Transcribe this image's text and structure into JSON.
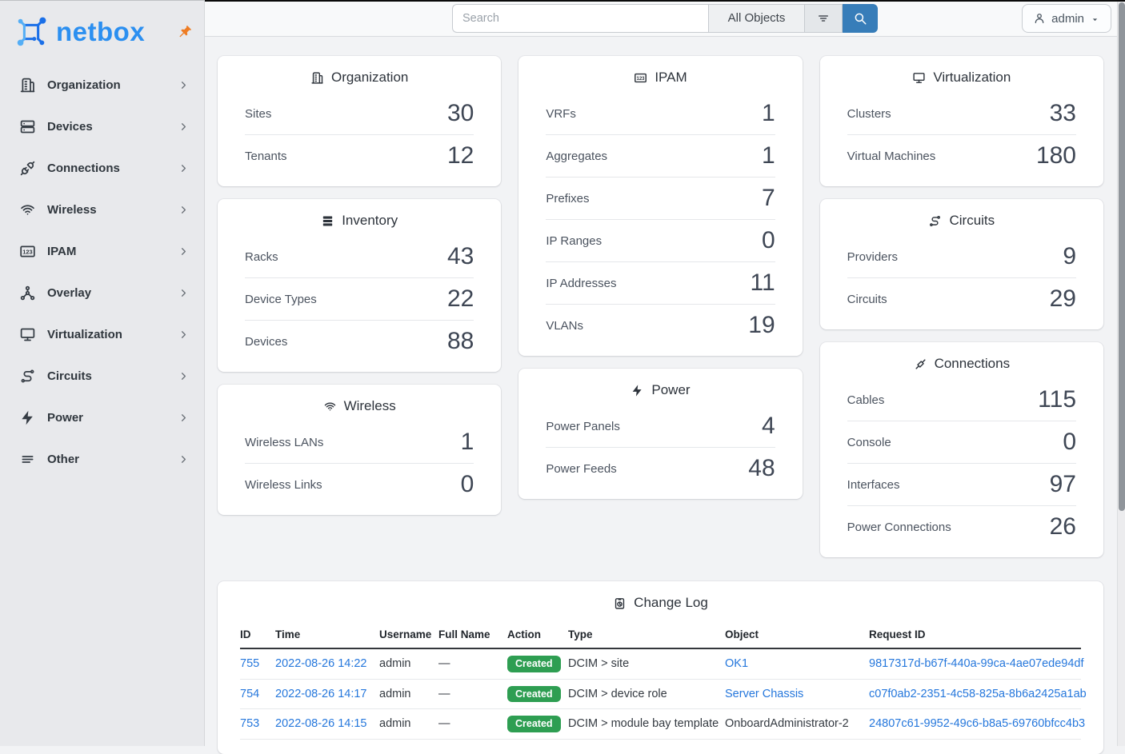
{
  "brand": {
    "name": "netbox",
    "pin_icon": "pin-icon",
    "logo_icon": "netbox-logo-icon"
  },
  "topbar": {
    "search": {
      "placeholder": "Search",
      "scope": "All Objects",
      "filter_icon": "filter-icon",
      "submit_icon": "search-icon"
    },
    "user": {
      "label": "admin",
      "icon": "user-icon",
      "caret_icon": "caret-down-icon"
    }
  },
  "sidebar": {
    "items": [
      {
        "label": "Organization",
        "icon": "building-icon"
      },
      {
        "label": "Devices",
        "icon": "server-icon"
      },
      {
        "label": "Connections",
        "icon": "plug-icon"
      },
      {
        "label": "Wireless",
        "icon": "wifi-icon"
      },
      {
        "label": "IPAM",
        "icon": "counter-icon"
      },
      {
        "label": "Overlay",
        "icon": "graph-icon"
      },
      {
        "label": "Virtualization",
        "icon": "monitor-icon"
      },
      {
        "label": "Circuits",
        "icon": "transit-icon"
      },
      {
        "label": "Power",
        "icon": "lightning-icon"
      },
      {
        "label": "Other",
        "icon": "lines-icon"
      }
    ]
  },
  "cards": [
    {
      "title": "Organization",
      "icon": "building-icon",
      "column": 0,
      "rows": [
        {
          "label": "Sites",
          "value": "30"
        },
        {
          "label": "Tenants",
          "value": "12"
        }
      ]
    },
    {
      "title": "Inventory",
      "icon": "inventory-icon",
      "column": 0,
      "rows": [
        {
          "label": "Racks",
          "value": "43"
        },
        {
          "label": "Device Types",
          "value": "22"
        },
        {
          "label": "Devices",
          "value": "88"
        }
      ]
    },
    {
      "title": "Wireless",
      "icon": "wifi-icon",
      "column": 0,
      "rows": [
        {
          "label": "Wireless LANs",
          "value": "1"
        },
        {
          "label": "Wireless Links",
          "value": "0"
        }
      ]
    },
    {
      "title": "IPAM",
      "icon": "counter-icon",
      "column": 1,
      "rows": [
        {
          "label": "VRFs",
          "value": "1"
        },
        {
          "label": "Aggregates",
          "value": "1"
        },
        {
          "label": "Prefixes",
          "value": "7"
        },
        {
          "label": "IP Ranges",
          "value": "0"
        },
        {
          "label": "IP Addresses",
          "value": "11"
        },
        {
          "label": "VLANs",
          "value": "19"
        }
      ]
    },
    {
      "title": "Power",
      "icon": "lightning-icon",
      "column": 1,
      "rows": [
        {
          "label": "Power Panels",
          "value": "4"
        },
        {
          "label": "Power Feeds",
          "value": "48"
        }
      ]
    },
    {
      "title": "Virtualization",
      "icon": "monitor-icon",
      "column": 2,
      "rows": [
        {
          "label": "Clusters",
          "value": "33"
        },
        {
          "label": "Virtual Machines",
          "value": "180"
        }
      ]
    },
    {
      "title": "Circuits",
      "icon": "transit-icon",
      "column": 2,
      "rows": [
        {
          "label": "Providers",
          "value": "9"
        },
        {
          "label": "Circuits",
          "value": "29"
        }
      ]
    },
    {
      "title": "Connections",
      "icon": "cable-icon",
      "column": 2,
      "rows": [
        {
          "label": "Cables",
          "value": "115"
        },
        {
          "label": "Console",
          "value": "0"
        },
        {
          "label": "Interfaces",
          "value": "97"
        },
        {
          "label": "Power Connections",
          "value": "26"
        }
      ]
    }
  ],
  "changelog": {
    "title": "Change Log",
    "icon": "clipboard-clock-icon",
    "columns": [
      "ID",
      "Time",
      "Username",
      "Full Name",
      "Action",
      "Type",
      "Object",
      "Request ID"
    ],
    "rows": [
      {
        "id": "755",
        "time": "2022-08-26 14:22",
        "username": "admin",
        "full_name": "—",
        "action": "Created",
        "type": "DCIM > site",
        "object": "OK1",
        "object_is_link": true,
        "request_id": "9817317d-b67f-440a-99ca-4ae07ede94df"
      },
      {
        "id": "754",
        "time": "2022-08-26 14:17",
        "username": "admin",
        "full_name": "—",
        "action": "Created",
        "type": "DCIM > device role",
        "object": "Server Chassis",
        "object_is_link": true,
        "request_id": "c07f0ab2-2351-4c58-825a-8b6a2425a1ab"
      },
      {
        "id": "753",
        "time": "2022-08-26 14:15",
        "username": "admin",
        "full_name": "—",
        "action": "Created",
        "type": "DCIM > module bay template",
        "object": "OnboardAdministrator-2",
        "object_is_link": false,
        "request_id": "24807c61-9952-49c6-b8a5-69760bfcc4b3"
      }
    ]
  },
  "colors": {
    "accent": "#377db9",
    "link": "#2577dc",
    "success": "#2e9e52",
    "pin": "#ee7c23",
    "logo_light": "#55aef5",
    "logo_dark": "#1a6fe8",
    "brand_text": "#2b8ff0"
  }
}
